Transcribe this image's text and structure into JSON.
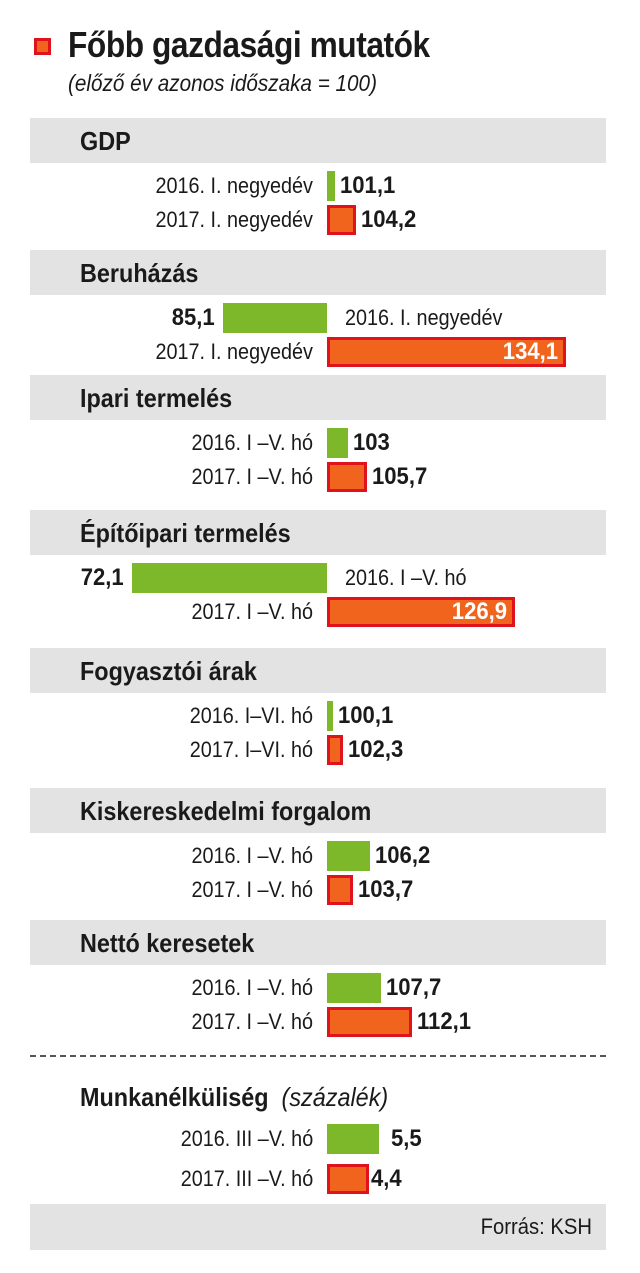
{
  "header": {
    "title": "Főbb gazdasági mutatók",
    "subtitle": "(előző év azonos időszaka = 100)"
  },
  "colors": {
    "prev_year": "#7cb82a",
    "curr_year": "#f0641e",
    "border": "#e0121c",
    "band": "#e3e3e3"
  },
  "chart_data": {
    "type": "bar",
    "orientation": "horizontal",
    "baseline": 100,
    "series": [
      {
        "name": "2016",
        "color": "#7cb82a"
      },
      {
        "name": "2017",
        "color": "#f0641e"
      }
    ],
    "groups": [
      {
        "name": "GDP",
        "layout": "normal",
        "rows": [
          {
            "label": "2016. I. negyedév",
            "value": 101.1,
            "display": "101,1",
            "series": "2016"
          },
          {
            "label": "2017. I. negyedév",
            "value": 104.2,
            "display": "104,2",
            "series": "2017"
          }
        ]
      },
      {
        "name": "Beruházás",
        "layout": "wide",
        "rows": [
          {
            "label": "2016. I. negyedév",
            "value": 85.1,
            "display": "85,1",
            "series": "2016"
          },
          {
            "label": "2017. I. negyedév",
            "value": 134.1,
            "display": "134,1",
            "series": "2017"
          }
        ]
      },
      {
        "name": "Ipari termelés",
        "layout": "normal",
        "rows": [
          {
            "label": "2016.  I –V. hó",
            "value": 103,
            "display": "103",
            "series": "2016"
          },
          {
            "label": "2017.  I –V. hó",
            "value": 105.7,
            "display": "105,7",
            "series": "2017"
          }
        ]
      },
      {
        "name": "Építőipari termelés",
        "layout": "wide",
        "rows": [
          {
            "label": "2016. I –V. hó",
            "value": 72.1,
            "display": "72,1",
            "series": "2016"
          },
          {
            "label": "2017. I –V. hó",
            "value": 126.9,
            "display": "126,9",
            "series": "2017"
          }
        ]
      },
      {
        "name": "Fogyasztói árak",
        "layout": "normal",
        "rows": [
          {
            "label": "2016. I–VI. hó",
            "value": 100.1,
            "display": "100,1",
            "series": "2016"
          },
          {
            "label": "2017. I–VI. hó",
            "value": 102.3,
            "display": "102,3",
            "series": "2017"
          }
        ]
      },
      {
        "name": "Kiskereskedelmi forgalom",
        "layout": "normal",
        "rows": [
          {
            "label": "2016.  I –V. hó",
            "value": 106.2,
            "display": "106,2",
            "series": "2016"
          },
          {
            "label": "2017.  I –V. hó",
            "value": 103.7,
            "display": "103,7",
            "series": "2017"
          }
        ]
      },
      {
        "name": "Nettó keresetek",
        "layout": "normal",
        "rows": [
          {
            "label": "2016. I –V. hó",
            "value": 107.7,
            "display": "107,7",
            "series": "2016"
          },
          {
            "label": "2017. I –V. hó",
            "value": 112.1,
            "display": "112,1",
            "series": "2017"
          }
        ]
      }
    ],
    "unemployment": {
      "name": "Munkanélküliség",
      "unit": "(százalék)",
      "rows": [
        {
          "label": "2016. III –V. hó",
          "value": 5.5,
          "display": "5,5",
          "series": "2016"
        },
        {
          "label": "2017. III –V. hó",
          "value": 4.4,
          "display": "4,4",
          "series": "2017"
        }
      ]
    }
  },
  "footer": {
    "source": "Forrás: KSH"
  }
}
